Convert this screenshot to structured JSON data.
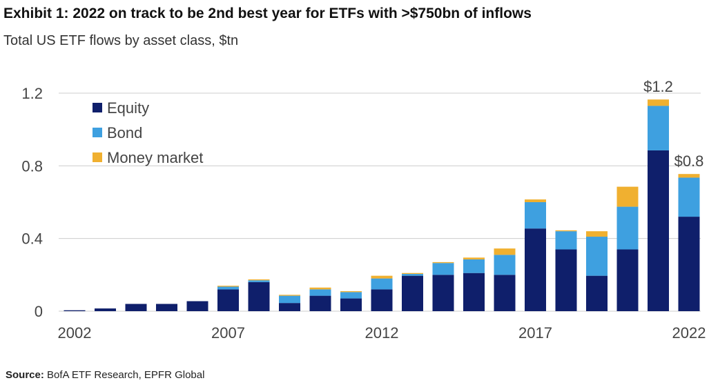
{
  "header": {
    "title": "Exhibit 1: 2022 on track to be 2nd best year for ETFs with >$750bn of inflows",
    "subtitle": "Total US ETF flows by asset class, $tn"
  },
  "source": {
    "label": "Source:",
    "text": "BofA ETF Research, EPFR Global"
  },
  "colors": {
    "equity": "#0f1f6b",
    "bond": "#3ea0e0",
    "money_market": "#f0b030",
    "gridline": "#cccccc",
    "axis_text": "#444444"
  },
  "chart_data": {
    "type": "bar",
    "stacked": true,
    "x": [
      2002,
      2003,
      2004,
      2005,
      2006,
      2007,
      2008,
      2009,
      2010,
      2011,
      2012,
      2013,
      2014,
      2015,
      2016,
      2017,
      2018,
      2019,
      2020,
      2021,
      2022
    ],
    "x_tick_labels": [
      "2002",
      "2007",
      "2012",
      "2017",
      "2022"
    ],
    "series": [
      {
        "name": "Equity",
        "color": "#0f1f6b",
        "values": [
          0.005,
          0.015,
          0.04,
          0.04,
          0.055,
          0.12,
          0.16,
          0.045,
          0.085,
          0.07,
          0.12,
          0.195,
          0.2,
          0.21,
          0.2,
          0.455,
          0.34,
          0.195,
          0.34,
          0.885,
          0.52
        ]
      },
      {
        "name": "Bond",
        "color": "#3ea0e0",
        "values": [
          0.0,
          0.0,
          0.0,
          0.0,
          0.0,
          0.015,
          0.01,
          0.04,
          0.035,
          0.035,
          0.06,
          0.01,
          0.065,
          0.075,
          0.11,
          0.145,
          0.1,
          0.215,
          0.235,
          0.245,
          0.215
        ]
      },
      {
        "name": "Money market",
        "color": "#f0b030",
        "values": [
          0.0,
          0.0,
          0.0,
          0.0,
          0.0,
          0.005,
          0.005,
          0.005,
          0.01,
          0.005,
          0.015,
          0.005,
          0.005,
          0.01,
          0.035,
          0.015,
          0.005,
          0.03,
          0.11,
          0.035,
          0.02
        ]
      }
    ],
    "title": "Exhibit 1: 2022 on track to be 2nd best year for ETFs with >$750bn of inflows",
    "subtitle": "Total US ETF flows by asset class, $tn",
    "ylim": [
      0,
      1.2
    ],
    "yticks": [
      0,
      0.4,
      0.8,
      1.2
    ],
    "ytick_labels": [
      "0",
      "0.4",
      "0.8",
      "1.2"
    ],
    "grid": true,
    "legend": "top-left",
    "annotations": [
      {
        "x": 2021,
        "text": "$1.2"
      },
      {
        "x": 2022,
        "text": "$0.8"
      }
    ]
  }
}
